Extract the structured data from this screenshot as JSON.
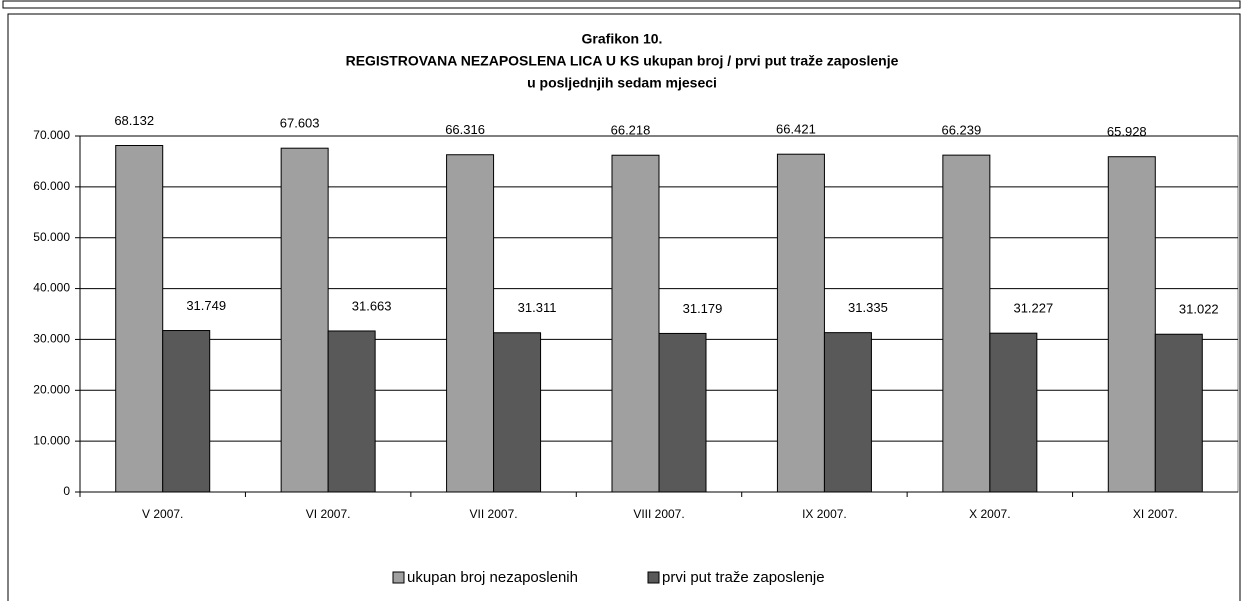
{
  "chart_data": {
    "type": "bar",
    "title": [
      "Grafikon 10.",
      "REGISTROVANA NEZAPOSLENA LICA U KS  ukupan broj / prvi put traže zaposlenje",
      "u posljednjih sedam  mjeseci"
    ],
    "categories": [
      "V 2007.",
      "VI 2007.",
      "VII 2007.",
      "VIII 2007.",
      "IX 2007.",
      "X 2007.",
      "XI 2007."
    ],
    "series": [
      {
        "name": "ukupan broj nezaposlenih",
        "color": "#a0a0a0",
        "values": [
          68132,
          67603,
          66316,
          66218,
          66421,
          66239,
          65928
        ],
        "value_labels": [
          "68.132",
          "67.603",
          "66.316",
          "66.218",
          "66.421",
          "66.239",
          "65.928"
        ]
      },
      {
        "name": "prvi put traže zaposlenje",
        "color": "#595959",
        "values": [
          31749,
          31663,
          31311,
          31179,
          31335,
          31227,
          31022
        ],
        "value_labels": [
          "31.749",
          "31.663",
          "31.311",
          "31.179",
          "31.335",
          "31.227",
          "31.022"
        ]
      }
    ],
    "ylim": [
      0,
      70000
    ],
    "yticks": [
      0,
      {
        "value": 10000,
        "label": "10.000"
      },
      {
        "value": 20000,
        "label": "20.000"
      },
      {
        "value": 30000,
        "label": "30.000"
      },
      {
        "value": 40000,
        "label": "40.000"
      },
      {
        "value": 50000,
        "label": "50.000"
      },
      {
        "value": 60000,
        "label": "60.000"
      },
      {
        "value": 70000,
        "label": "70.000"
      }
    ],
    "grid": true,
    "legend": "bottom"
  }
}
